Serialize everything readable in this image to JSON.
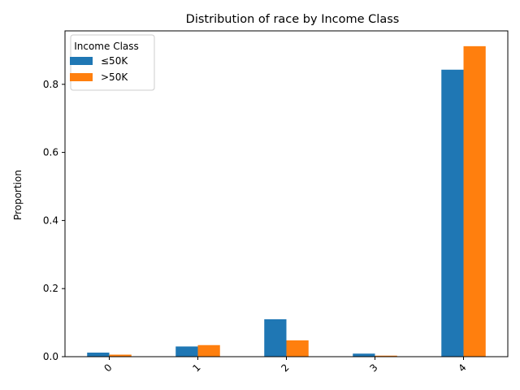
{
  "chart_data": {
    "type": "bar",
    "title": "Distribution of race by Income Class",
    "xlabel": "",
    "ylabel": "Proportion",
    "categories": [
      "0",
      "1",
      "2",
      "3",
      "4"
    ],
    "series": [
      {
        "name": "≤50K",
        "values": [
          0.012,
          0.03,
          0.11,
          0.009,
          0.843
        ],
        "color": "#1f77b4"
      },
      {
        "name": ">50K",
        "values": [
          0.006,
          0.034,
          0.048,
          0.003,
          0.912
        ],
        "color": "#ff7f0e"
      }
    ],
    "ylim": [
      0,
      0.957
    ],
    "yticks": [
      0.0,
      0.2,
      0.4,
      0.6,
      0.8
    ],
    "ytick_labels": [
      "0.0",
      "0.2",
      "0.4",
      "0.6",
      "0.8"
    ],
    "legend": {
      "title": "Income Class",
      "position": "top-left"
    },
    "grid": false
  }
}
